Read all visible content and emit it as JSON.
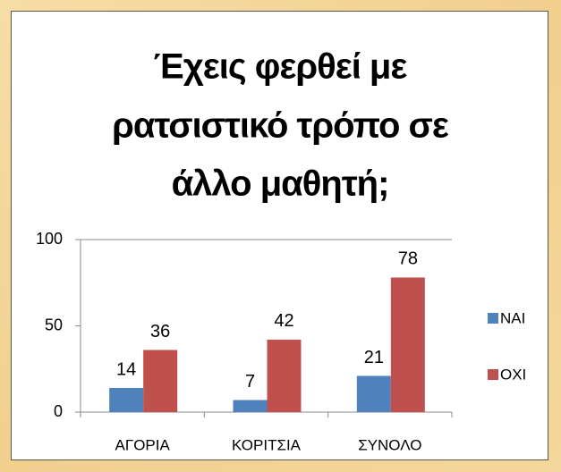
{
  "chart_data": {
    "type": "bar",
    "title": [
      "Έχεις φερθεί με",
      "ρατσιστικό τρόπο σε",
      "άλλο μαθητή;"
    ],
    "categories": [
      "ΑΓΟΡΙΑ",
      "ΚΟΡΙΤΣΙΑ",
      "ΣΥΝΟΛΟ"
    ],
    "series": [
      {
        "name": "ΝΑΙ",
        "color": "#4f81bd",
        "values": [
          14,
          7,
          21
        ]
      },
      {
        "name": "ΟΧΙ",
        "color": "#c0504d",
        "values": [
          36,
          42,
          78
        ]
      }
    ],
    "ylim": [
      0,
      100
    ],
    "yticks": [
      0,
      50,
      100
    ],
    "legend": "right"
  }
}
